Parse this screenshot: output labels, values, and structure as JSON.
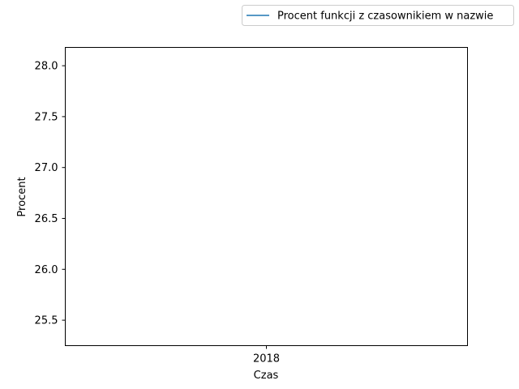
{
  "chart_data": {
    "type": "line",
    "title": "",
    "xlabel": "Czas",
    "ylabel": "Procent",
    "x_ticks": [
      "2018"
    ],
    "y_ticks": [
      "25.5",
      "26.0",
      "26.5",
      "27.0",
      "27.5",
      "28.0"
    ],
    "ylim": [
      25.25,
      28.18
    ],
    "grid": false,
    "legend_placement": "top-right, above plot",
    "series": [
      {
        "name": "Procent funkcji z czasownikiem w nazwie",
        "color": "#1f77b4",
        "x": [],
        "y": []
      }
    ]
  }
}
